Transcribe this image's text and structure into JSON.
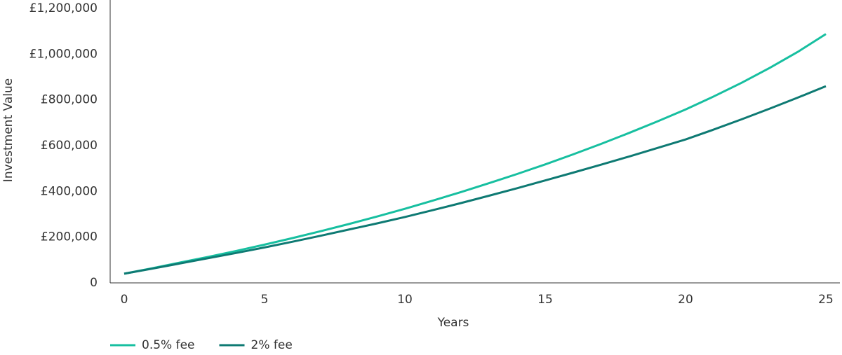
{
  "chart_data": {
    "type": "line",
    "x_label": "Years",
    "y_label": "Investment Value",
    "x": [
      0,
      1,
      2,
      3,
      4,
      5,
      6,
      7,
      8,
      9,
      10,
      11,
      12,
      13,
      14,
      15,
      16,
      17,
      18,
      19,
      20,
      21,
      22,
      23,
      24,
      25
    ],
    "series": [
      {
        "name": "0.5% fee",
        "color": "#17bfa0",
        "values": [
          40000,
          64000,
          89000,
          114000,
          140000,
          167000,
          196000,
          226000,
          257000,
          290000,
          324000,
          360000,
          397000,
          436000,
          476000,
          518000,
          562000,
          608000,
          656000,
          706000,
          758000,
          815000,
          875000,
          940000,
          1010000,
          1088000
        ]
      },
      {
        "name": "2% fee",
        "color": "#0e7a73",
        "values": [
          40000,
          62000,
          85000,
          108000,
          131000,
          155000,
          180000,
          206000,
          233000,
          260000,
          288000,
          318000,
          349000,
          381000,
          414000,
          448000,
          482000,
          517000,
          553000,
          590000,
          627000,
          670000,
          715000,
          762000,
          810000,
          860000
        ]
      }
    ],
    "xlim": [
      -0.5,
      25.5
    ],
    "xticks": [
      0,
      5,
      10,
      15,
      20,
      25
    ],
    "ylim": [
      0,
      1200000
    ],
    "yticks": [
      0,
      {
        "value": 200000,
        "label": "£200,000"
      },
      {
        "value": 400000,
        "label": "£400,000"
      },
      {
        "value": 600000,
        "label": "£600,000"
      },
      {
        "value": 800000,
        "label": "£800,000"
      },
      {
        "value": 1000000,
        "label": "£1,000,000"
      },
      {
        "value": 1200000,
        "label": "£1,200,000"
      }
    ],
    "legend": "bottom-left"
  }
}
